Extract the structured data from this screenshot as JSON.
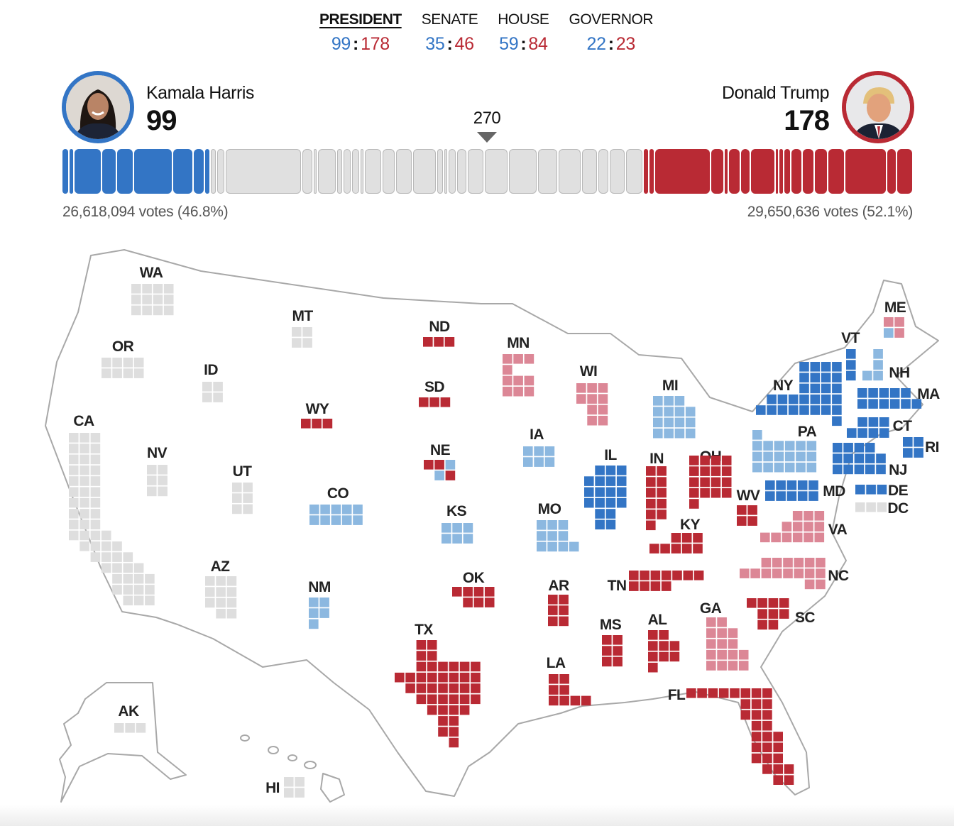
{
  "tabs": [
    {
      "label": "PRESIDENT",
      "d": "99",
      "r": "178",
      "active": true
    },
    {
      "label": "SENATE",
      "d": "35",
      "r": "46",
      "active": false
    },
    {
      "label": "HOUSE",
      "d": "59",
      "r": "84",
      "active": false
    },
    {
      "label": "GOVERNOR",
      "d": "22",
      "r": "23",
      "active": false
    }
  ],
  "candidates": {
    "dem": {
      "name": "Kamala Harris",
      "ev": "99",
      "votes": "26,618,094 votes (46.8%)",
      "color": "#3375c5"
    },
    "rep": {
      "name": "Donald Trump",
      "ev": "178",
      "votes": "29,650,636 votes (52.1%)",
      "color": "#b92a34"
    }
  },
  "threshold": "270",
  "bar": {
    "called_d": [
      4,
      3,
      19,
      10,
      11,
      28,
      14,
      7,
      3
    ],
    "uncalled": [
      3,
      4,
      54,
      6,
      1,
      12,
      3,
      4,
      4,
      1,
      11,
      8,
      10,
      16,
      3,
      1,
      4,
      6,
      10,
      16,
      19,
      13,
      15,
      10,
      6,
      10,
      11
    ],
    "called_r": [
      3,
      3,
      40,
      9,
      2,
      8,
      6,
      17,
      1,
      3,
      4,
      7,
      8,
      9,
      11,
      30,
      6,
      11
    ]
  },
  "colors": {
    "called_d": "#3375c5",
    "lean_d": "#8cb8e0",
    "called_r": "#b92a34",
    "lean_r": "#dc8796",
    "uncalled": "#dedede"
  },
  "states": [
    {
      "abbr": "WA",
      "ev": 12,
      "status": "uncalled"
    },
    {
      "abbr": "OR",
      "ev": 8,
      "status": "uncalled"
    },
    {
      "abbr": "CA",
      "ev": 54,
      "status": "uncalled"
    },
    {
      "abbr": "ID",
      "ev": 4,
      "status": "uncalled"
    },
    {
      "abbr": "MT",
      "ev": 4,
      "status": "uncalled"
    },
    {
      "abbr": "NV",
      "ev": 6,
      "status": "uncalled"
    },
    {
      "abbr": "UT",
      "ev": 6,
      "status": "uncalled"
    },
    {
      "abbr": "WY",
      "ev": 3,
      "status": "called_r"
    },
    {
      "abbr": "CO",
      "ev": 10,
      "status": "lean_d"
    },
    {
      "abbr": "AZ",
      "ev": 11,
      "status": "uncalled"
    },
    {
      "abbr": "NM",
      "ev": 5,
      "status": "lean_d"
    },
    {
      "abbr": "ND",
      "ev": 3,
      "status": "called_r"
    },
    {
      "abbr": "SD",
      "ev": 3,
      "status": "called_r"
    },
    {
      "abbr": "NE",
      "ev": 5,
      "tiles": [
        "called_r",
        "called_r",
        "lean_d",
        "lean_d",
        "called_r"
      ]
    },
    {
      "abbr": "KS",
      "ev": 6,
      "status": "lean_d"
    },
    {
      "abbr": "OK",
      "ev": 7,
      "status": "called_r"
    },
    {
      "abbr": "TX",
      "ev": 40,
      "status": "called_r"
    },
    {
      "abbr": "MN",
      "ev": 10,
      "status": "lean_r"
    },
    {
      "abbr": "IA",
      "ev": 6,
      "status": "lean_d"
    },
    {
      "abbr": "MO",
      "ev": 10,
      "status": "lean_d"
    },
    {
      "abbr": "AR",
      "ev": 6,
      "status": "called_r"
    },
    {
      "abbr": "LA",
      "ev": 8,
      "status": "called_r"
    },
    {
      "abbr": "WI",
      "ev": 10,
      "status": "lean_r"
    },
    {
      "abbr": "IL",
      "ev": 19,
      "status": "called_d"
    },
    {
      "abbr": "MS",
      "ev": 6,
      "status": "called_r"
    },
    {
      "abbr": "MI",
      "ev": 15,
      "status": "lean_d"
    },
    {
      "abbr": "IN",
      "ev": 11,
      "status": "called_r"
    },
    {
      "abbr": "KY",
      "ev": 8,
      "status": "called_r"
    },
    {
      "abbr": "TN",
      "ev": 11,
      "status": "called_r"
    },
    {
      "abbr": "AL",
      "ev": 9,
      "status": "called_r"
    },
    {
      "abbr": "OH",
      "ev": 17,
      "status": "called_r"
    },
    {
      "abbr": "WV",
      "ev": 4,
      "status": "called_r"
    },
    {
      "abbr": "GA",
      "ev": 16,
      "status": "lean_r"
    },
    {
      "abbr": "FL",
      "ev": 30,
      "status": "called_r"
    },
    {
      "abbr": "SC",
      "ev": 9,
      "status": "called_r"
    },
    {
      "abbr": "NC",
      "ev": 16,
      "status": "lean_r"
    },
    {
      "abbr": "VA",
      "ev": 13,
      "status": "lean_r"
    },
    {
      "abbr": "MD",
      "ev": 10,
      "status": "called_d"
    },
    {
      "abbr": "DE",
      "ev": 3,
      "status": "called_d"
    },
    {
      "abbr": "DC",
      "ev": 3,
      "status": "uncalled"
    },
    {
      "abbr": "PA",
      "ev": 19,
      "status": "lean_d"
    },
    {
      "abbr": "NJ",
      "ev": 14,
      "status": "called_d"
    },
    {
      "abbr": "NY",
      "ev": 28,
      "status": "called_d"
    },
    {
      "abbr": "VT",
      "ev": 3,
      "status": "called_d"
    },
    {
      "abbr": "NH",
      "ev": 4,
      "status": "lean_d"
    },
    {
      "abbr": "ME",
      "ev": 4,
      "tiles": [
        "lean_r",
        "lean_r",
        "lean_d",
        "lean_r"
      ]
    },
    {
      "abbr": "MA",
      "ev": 11,
      "status": "called_d"
    },
    {
      "abbr": "CT",
      "ev": 7,
      "status": "called_d"
    },
    {
      "abbr": "RI",
      "ev": 4,
      "status": "called_d"
    },
    {
      "abbr": "AK",
      "ev": 3,
      "status": "uncalled"
    },
    {
      "abbr": "HI",
      "ev": 4,
      "status": "uncalled"
    }
  ]
}
